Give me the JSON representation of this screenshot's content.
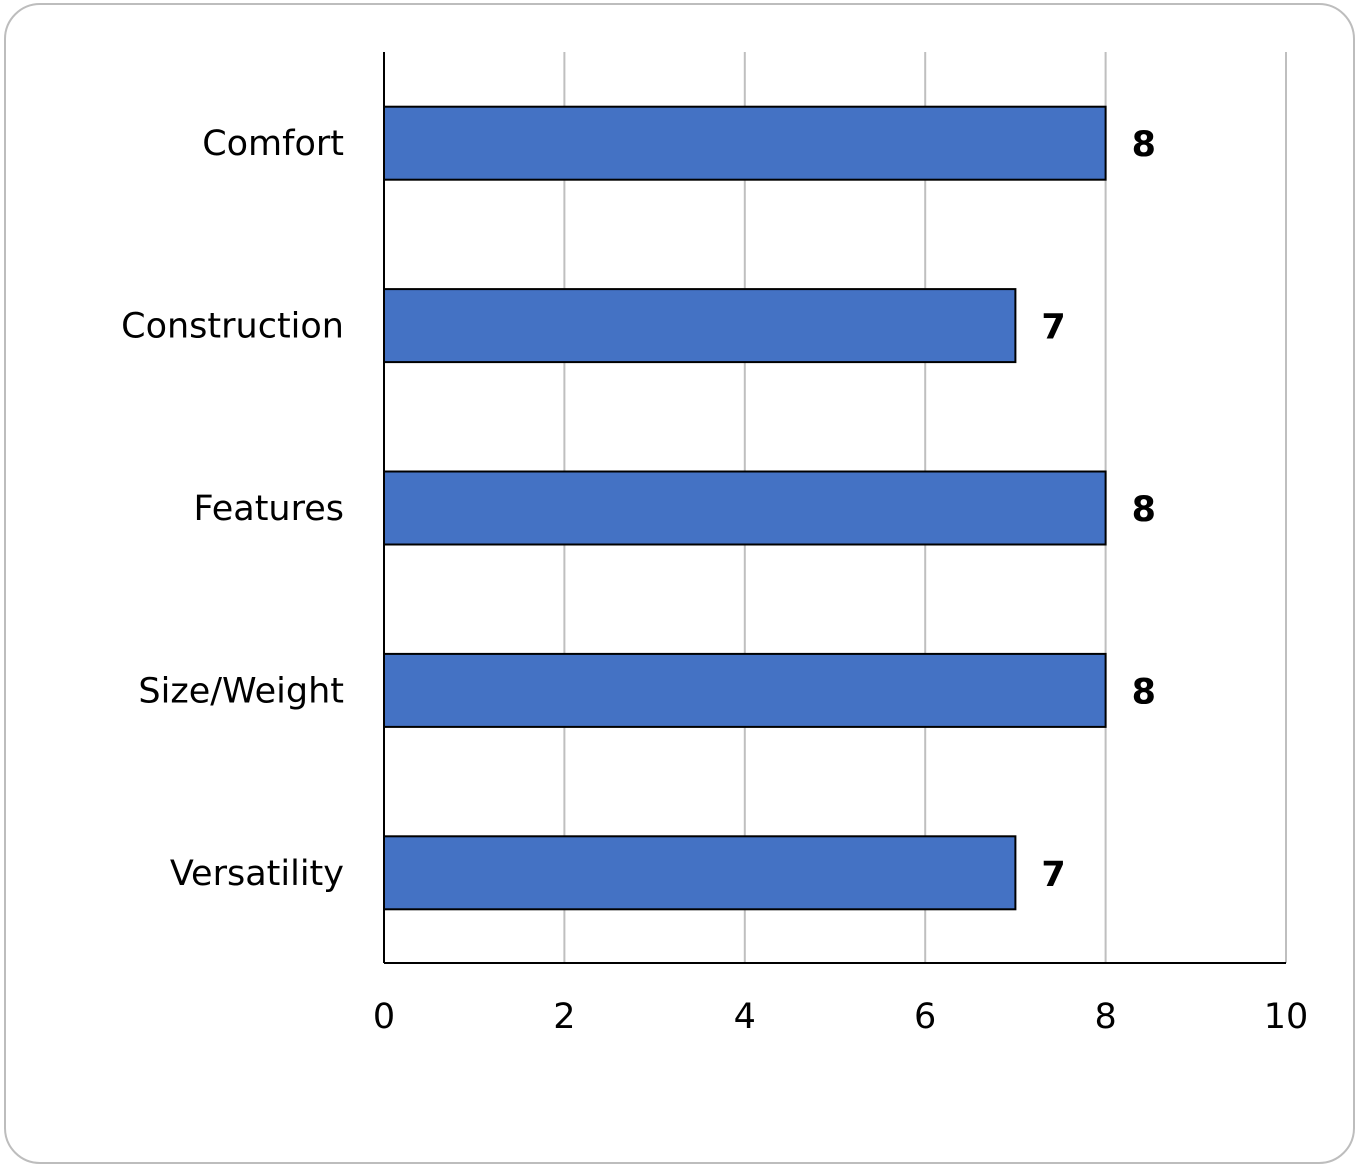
{
  "chart_data": {
    "type": "bar",
    "orientation": "horizontal",
    "categories": [
      "Comfort",
      "Construction",
      "Features",
      "Size/Weight",
      "Versatility"
    ],
    "values": [
      8,
      7,
      8,
      8,
      7
    ],
    "data_labels": [
      "8",
      "7",
      "8",
      "8",
      "7"
    ],
    "xlim": [
      0,
      10
    ],
    "xticks": [
      "0",
      "2",
      "4",
      "6",
      "8",
      "10"
    ],
    "xtick_values": [
      0,
      2,
      4,
      6,
      8,
      10
    ],
    "title": "",
    "xlabel": "",
    "ylabel": "",
    "grid": "vertical",
    "legend": "none",
    "colors": {
      "bar_fill": "#4472C4",
      "bar_stroke": "#000000",
      "grid": "#bfbfbf",
      "axis": "#000000"
    }
  }
}
